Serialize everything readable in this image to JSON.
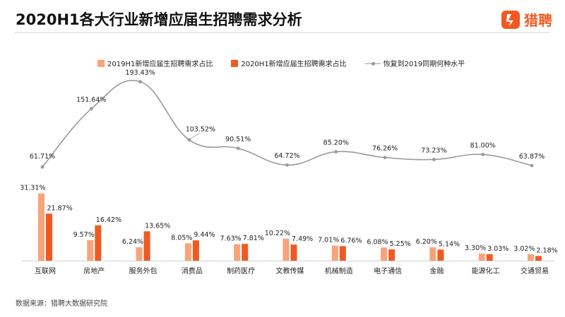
{
  "header": {
    "title": "2020H1各大行业新增应届生招聘需求分析",
    "logo_text": "猎聘",
    "logo_icon": "liepin-logo-icon"
  },
  "source_note": "数据来源：猎聘大数据研究院",
  "colors": {
    "bar_2019": "#f9a37a",
    "bar_2020": "#f05a22",
    "line": "#9a9a9a",
    "brand": "#f05a22"
  },
  "chart_data": {
    "type": "bar",
    "title": "2020H1各大行业新增应届生招聘需求分析",
    "categories": [
      "互联网",
      "房地产",
      "服务外包",
      "消费品",
      "制药医疗",
      "文教传媒",
      "机械制造",
      "电子通信",
      "金融",
      "能源化工",
      "交通贸易"
    ],
    "series": [
      {
        "name": "2019H1新增应届生招聘需求占比",
        "type": "bar",
        "values": [
          31.31,
          9.57,
          6.24,
          8.05,
          7.63,
          10.22,
          7.01,
          6.08,
          6.2,
          3.3,
          3.02
        ],
        "labels": [
          "31.31%",
          "9.57%",
          "6.24%",
          "8.05%",
          "7.63%",
          "10.22%",
          "7.01%",
          "6.08%",
          "6.20%",
          "3.30%",
          "3.02%"
        ]
      },
      {
        "name": "2020H1新增应届生招聘需求占比",
        "type": "bar",
        "values": [
          21.87,
          16.42,
          13.65,
          9.44,
          7.81,
          7.49,
          6.76,
          5.25,
          5.14,
          3.03,
          2.18
        ],
        "labels": [
          "21.87%",
          "16.42%",
          "13.65%",
          "9.44%",
          "7.81%",
          "7.49%",
          "6.76%",
          "5.25%",
          "5.14%",
          "3.03%",
          "2.18%"
        ]
      },
      {
        "name": "恢复到2019同期何种水平",
        "type": "line",
        "values": [
          61.71,
          151.64,
          193.43,
          103.52,
          90.51,
          64.72,
          85.2,
          76.26,
          73.23,
          81.0,
          63.87
        ],
        "labels": [
          "61.71%",
          "151.64%",
          "193.43%",
          "103.52%",
          "90.51%",
          "64.72%",
          "85.20%",
          "76.26%",
          "73.23%",
          "81.00%",
          "63.87%"
        ]
      }
    ],
    "legend_position": "top",
    "grid": false
  }
}
